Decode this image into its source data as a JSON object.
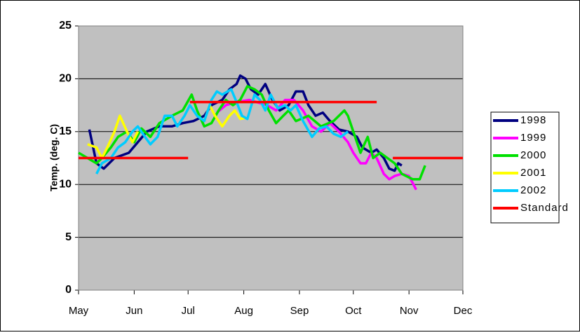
{
  "chart_data": {
    "type": "line",
    "ylabel": "Temp. (deg. C)",
    "xlim": [
      0,
      214
    ],
    "xticks": [
      {
        "value": 0,
        "label": "May"
      },
      {
        "value": 31,
        "label": "Jun"
      },
      {
        "value": 61,
        "label": "Jul"
      },
      {
        "value": 92,
        "label": "Aug"
      },
      {
        "value": 123,
        "label": "Sep"
      },
      {
        "value": 153,
        "label": "Oct"
      },
      {
        "value": 184,
        "label": "Nov"
      },
      {
        "value": 214,
        "label": "Dec"
      }
    ],
    "ylim": [
      0,
      25
    ],
    "yticks": [
      0,
      5,
      10,
      15,
      20,
      25
    ],
    "grid": true,
    "legend": "right",
    "series": [
      {
        "name": "1998",
        "color": "#000080",
        "x": [
          6,
          10,
          14,
          20,
          28,
          33,
          38,
          45,
          52,
          58,
          64,
          70,
          74,
          80,
          84,
          88,
          90,
          93,
          96,
          100,
          104,
          108,
          112,
          117,
          121,
          125,
          128,
          132,
          136,
          140,
          145,
          150,
          155,
          158,
          163,
          166,
          170,
          173,
          176,
          178,
          180
        ],
        "values": [
          15.2,
          12,
          11.5,
          12.5,
          13,
          14,
          15,
          15.5,
          15.5,
          15.8,
          16,
          16.5,
          17.5,
          18,
          19,
          19.5,
          20.3,
          20,
          19,
          18.5,
          19.5,
          18,
          17,
          17.5,
          18.8,
          18.8,
          17.5,
          16.5,
          16.8,
          16,
          15.2,
          15,
          14.5,
          13.5,
          13,
          13.3,
          12.5,
          11.5,
          11.3,
          12,
          11.8
        ]
      },
      {
        "name": "1999",
        "color": "#ff00ff",
        "x": [
          77,
          82,
          88,
          95,
          105,
          110,
          115,
          120,
          125,
          130,
          135,
          140,
          145,
          150,
          153,
          157,
          160,
          163,
          166,
          170,
          173,
          176,
          180,
          184,
          188
        ],
        "values": [
          16.8,
          17.5,
          17.8,
          18,
          17.5,
          17,
          18,
          18,
          17,
          15.5,
          15,
          15.8,
          15,
          14,
          13,
          12,
          12,
          13,
          12.5,
          11,
          10.5,
          10.8,
          11,
          10.8,
          9.5
        ]
      },
      {
        "name": "2000",
        "color": "#00e000",
        "x": [
          0,
          5,
          10,
          13,
          18,
          22,
          27,
          31,
          35,
          40,
          45,
          52,
          58,
          63,
          66,
          70,
          74,
          78,
          82,
          86,
          90,
          94,
          98,
          102,
          106,
          110,
          114,
          117,
          121,
          128,
          135,
          142,
          148,
          150,
          153,
          157,
          161,
          164,
          168,
          172,
          176,
          180,
          186,
          190,
          193
        ],
        "values": [
          13,
          12.5,
          12,
          12.5,
          13.5,
          14.5,
          15,
          14,
          15.3,
          14.5,
          15.8,
          16.5,
          17,
          18.5,
          17,
          15.5,
          15.8,
          17,
          18,
          17.5,
          18,
          19.3,
          19,
          18.5,
          17,
          15.8,
          16.5,
          17,
          16,
          16.5,
          15.5,
          16,
          17,
          16.5,
          15,
          13,
          14.5,
          12.5,
          13,
          12.5,
          12,
          11,
          10.5,
          10.5,
          11.8
        ]
      },
      {
        "name": "2001",
        "color": "#ffff00",
        "x": [
          5,
          10,
          13,
          16,
          20,
          23,
          27,
          30,
          33,
          50,
          70,
          73,
          76,
          80,
          84,
          87,
          90,
          93
        ],
        "values": [
          13.8,
          13.5,
          12.5,
          13.5,
          15,
          16.5,
          15,
          14,
          15,
          null,
          16,
          17.5,
          16.5,
          15.5,
          16.5,
          17,
          16.2,
          16.3
        ]
      },
      {
        "name": "2002",
        "color": "#00ccff",
        "x": [
          10,
          13,
          18,
          22,
          26,
          30,
          33,
          37,
          40,
          44,
          48,
          52,
          55,
          59,
          62,
          66,
          70,
          74,
          77,
          80,
          85,
          88,
          91,
          94,
          98,
          101,
          104,
          107,
          111,
          115,
          118,
          121,
          125,
          130,
          134,
          138,
          142,
          146,
          150
        ],
        "values": [
          11,
          12,
          12.5,
          13.5,
          14,
          15,
          15.5,
          14.5,
          13.8,
          14.5,
          16.5,
          16.5,
          15.5,
          16.5,
          17.5,
          16.5,
          16,
          18,
          18.8,
          18.5,
          19,
          17.8,
          16.5,
          16.2,
          18.5,
          18,
          17,
          18.5,
          17.2,
          17.5,
          17,
          17.5,
          16,
          14.5,
          15.3,
          15.5,
          14.8,
          14.5,
          15
        ]
      },
      {
        "name": "Standard",
        "color": "#ff0000",
        "x": [
          0,
          61,
          61.5,
          62,
          166,
          170,
          175,
          214
        ],
        "values": [
          12.5,
          12.5,
          null,
          17.8,
          17.8,
          null,
          12.5,
          12.5
        ]
      }
    ]
  }
}
